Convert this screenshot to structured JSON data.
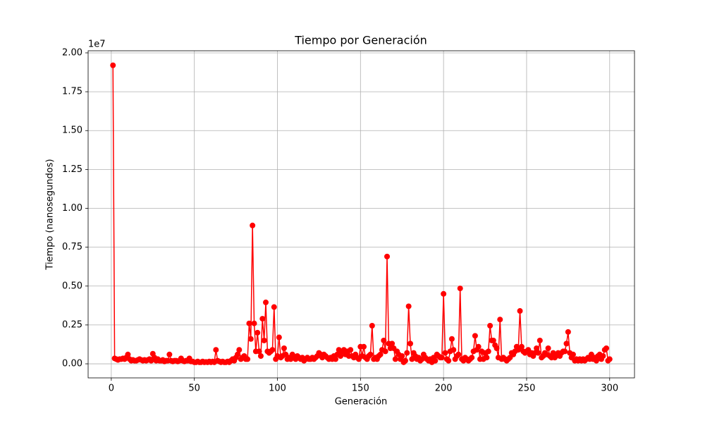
{
  "chart_data": {
    "type": "line",
    "title": "Tiempo por Generación",
    "xlabel": "Generación",
    "ylabel": "Tiempo (nanosegundos)",
    "y_offset_text": "1e7",
    "color": "#ff0000",
    "grid": true,
    "marker": "o",
    "xlim": [
      -13.95,
      314.95
    ],
    "ylim": [
      -0.0905,
      2.0135
    ],
    "xticks": [
      0,
      50,
      100,
      150,
      200,
      250,
      300
    ],
    "yticks": [
      {
        "value": 0,
        "label": "0.00"
      },
      {
        "value": 0.25,
        "label": "0.25"
      },
      {
        "value": 0.5,
        "label": "0.50"
      },
      {
        "value": 0.75,
        "label": "0.75"
      },
      {
        "value": 1,
        "label": "1.00"
      },
      {
        "value": 1.25,
        "label": "1.25"
      },
      {
        "value": 1.5,
        "label": "1.50"
      },
      {
        "value": 1.75,
        "label": "1.75"
      },
      {
        "value": 2,
        "label": "2.00"
      }
    ],
    "x": [
      1,
      2,
      3,
      4,
      5,
      6,
      7,
      8,
      9,
      10,
      11,
      12,
      13,
      14,
      15,
      16,
      17,
      18,
      19,
      20,
      21,
      22,
      23,
      24,
      25,
      26,
      27,
      28,
      29,
      30,
      31,
      32,
      33,
      34,
      35,
      36,
      37,
      38,
      39,
      40,
      41,
      42,
      43,
      44,
      45,
      46,
      47,
      48,
      49,
      50,
      51,
      52,
      53,
      54,
      55,
      56,
      57,
      58,
      59,
      60,
      61,
      62,
      63,
      64,
      65,
      66,
      67,
      68,
      69,
      70,
      71,
      72,
      73,
      74,
      75,
      76,
      77,
      78,
      79,
      80,
      81,
      82,
      83,
      84,
      85,
      86,
      87,
      88,
      89,
      90,
      91,
      92,
      93,
      94,
      95,
      96,
      97,
      98,
      99,
      100,
      101,
      102,
      103,
      104,
      105,
      106,
      107,
      108,
      109,
      110,
      111,
      112,
      113,
      114,
      115,
      116,
      117,
      118,
      119,
      120,
      121,
      122,
      123,
      124,
      125,
      126,
      127,
      128,
      129,
      130,
      131,
      132,
      133,
      134,
      135,
      136,
      137,
      138,
      139,
      140,
      141,
      142,
      143,
      144,
      145,
      146,
      147,
      148,
      149,
      150,
      151,
      152,
      153,
      154,
      155,
      156,
      157,
      158,
      159,
      160,
      161,
      162,
      163,
      164,
      165,
      166,
      167,
      168,
      169,
      170,
      171,
      172,
      173,
      174,
      175,
      176,
      177,
      178,
      179,
      180,
      181,
      182,
      183,
      184,
      185,
      186,
      187,
      188,
      189,
      190,
      191,
      192,
      193,
      194,
      195,
      196,
      197,
      198,
      199,
      200,
      201,
      202,
      203,
      204,
      205,
      206,
      207,
      208,
      209,
      210,
      211,
      212,
      213,
      214,
      215,
      216,
      217,
      218,
      219,
      220,
      221,
      222,
      223,
      224,
      225,
      226,
      227,
      228,
      229,
      230,
      231,
      232,
      233,
      234,
      235,
      236,
      237,
      238,
      239,
      240,
      241,
      242,
      243,
      244,
      245,
      246,
      247,
      248,
      249,
      250,
      251,
      252,
      253,
      254,
      255,
      256,
      257,
      258,
      259,
      260,
      261,
      262,
      263,
      264,
      265,
      266,
      267,
      268,
      269,
      270,
      271,
      272,
      273,
      274,
      275,
      276,
      277,
      278,
      279,
      280,
      281,
      282,
      283,
      284,
      285,
      286,
      287,
      288,
      289,
      290,
      291,
      292,
      293,
      294,
      295,
      296,
      297,
      298,
      299,
      300
    ],
    "values": [
      1.92,
      0.035,
      0.03,
      0.025,
      0.03,
      0.03,
      0.035,
      0.03,
      0.04,
      0.06,
      0.03,
      0.02,
      0.025,
      0.02,
      0.02,
      0.025,
      0.03,
      0.025,
      0.02,
      0.025,
      0.02,
      0.025,
      0.03,
      0.02,
      0.065,
      0.04,
      0.02,
      0.03,
      0.02,
      0.02,
      0.025,
      0.015,
      0.02,
      0.02,
      0.06,
      0.02,
      0.015,
      0.02,
      0.02,
      0.015,
      0.02,
      0.035,
      0.02,
      0.015,
      0.02,
      0.02,
      0.035,
      0.015,
      0.015,
      0.01,
      0.01,
      0.015,
      0.01,
      0.01,
      0.015,
      0.01,
      0.012,
      0.01,
      0.015,
      0.01,
      0.015,
      0.01,
      0.09,
      0.02,
      0.015,
      0.01,
      0.015,
      0.01,
      0.01,
      0.015,
      0.01,
      0.02,
      0.03,
      0.02,
      0.04,
      0.06,
      0.09,
      0.03,
      0.04,
      0.05,
      0.03,
      0.03,
      0.26,
      0.16,
      0.89,
      0.26,
      0.08,
      0.2,
      0.08,
      0.05,
      0.29,
      0.15,
      0.395,
      0.08,
      0.07,
      0.08,
      0.09,
      0.365,
      0.03,
      0.05,
      0.17,
      0.04,
      0.05,
      0.1,
      0.06,
      0.03,
      0.04,
      0.03,
      0.06,
      0.04,
      0.03,
      0.05,
      0.04,
      0.03,
      0.04,
      0.02,
      0.03,
      0.04,
      0.03,
      0.03,
      0.04,
      0.03,
      0.04,
      0.05,
      0.07,
      0.06,
      0.04,
      0.06,
      0.05,
      0.04,
      0.03,
      0.04,
      0.03,
      0.05,
      0.03,
      0.06,
      0.09,
      0.05,
      0.08,
      0.09,
      0.06,
      0.08,
      0.05,
      0.09,
      0.05,
      0.04,
      0.06,
      0.04,
      0.03,
      0.11,
      0.05,
      0.11,
      0.04,
      0.03,
      0.05,
      0.06,
      0.245,
      0.03,
      0.04,
      0.03,
      0.05,
      0.06,
      0.09,
      0.15,
      0.08,
      0.69,
      0.13,
      0.1,
      0.13,
      0.1,
      0.03,
      0.08,
      0.06,
      0.03,
      0.05,
      0.01,
      0.02,
      0.07,
      0.37,
      0.13,
      0.03,
      0.07,
      0.05,
      0.03,
      0.04,
      0.02,
      0.03,
      0.06,
      0.04,
      0.03,
      0.02,
      0.03,
      0.01,
      0.04,
      0.02,
      0.06,
      0.05,
      0.04,
      0.04,
      0.45,
      0.07,
      0.03,
      0.02,
      0.08,
      0.16,
      0.09,
      0.03,
      0.05,
      0.06,
      0.485,
      0.03,
      0.02,
      0.04,
      0.03,
      0.02,
      0.03,
      0.04,
      0.08,
      0.18,
      0.09,
      0.11,
      0.03,
      0.08,
      0.03,
      0.07,
      0.04,
      0.08,
      0.245,
      0.15,
      0.15,
      0.12,
      0.1,
      0.04,
      0.285,
      0.03,
      0.04,
      0.03,
      0.02,
      0.03,
      0.04,
      0.07,
      0.06,
      0.08,
      0.11,
      0.09,
      0.34,
      0.11,
      0.08,
      0.07,
      0.08,
      0.09,
      0.06,
      0.07,
      0.05,
      0.07,
      0.1,
      0.07,
      0.15,
      0.04,
      0.05,
      0.07,
      0.06,
      0.1,
      0.05,
      0.04,
      0.07,
      0.04,
      0.06,
      0.07,
      0.05,
      0.07,
      0.08,
      0.08,
      0.13,
      0.205,
      0.07,
      0.04,
      0.06,
      0.02,
      0.03,
      0.02,
      0.03,
      0.02,
      0.03,
      0.02,
      0.03,
      0.04,
      0.03,
      0.06,
      0.03,
      0.04,
      0.02,
      0.05,
      0.06,
      0.03,
      0.05,
      0.09,
      0.1,
      0.02,
      0.03
    ]
  }
}
